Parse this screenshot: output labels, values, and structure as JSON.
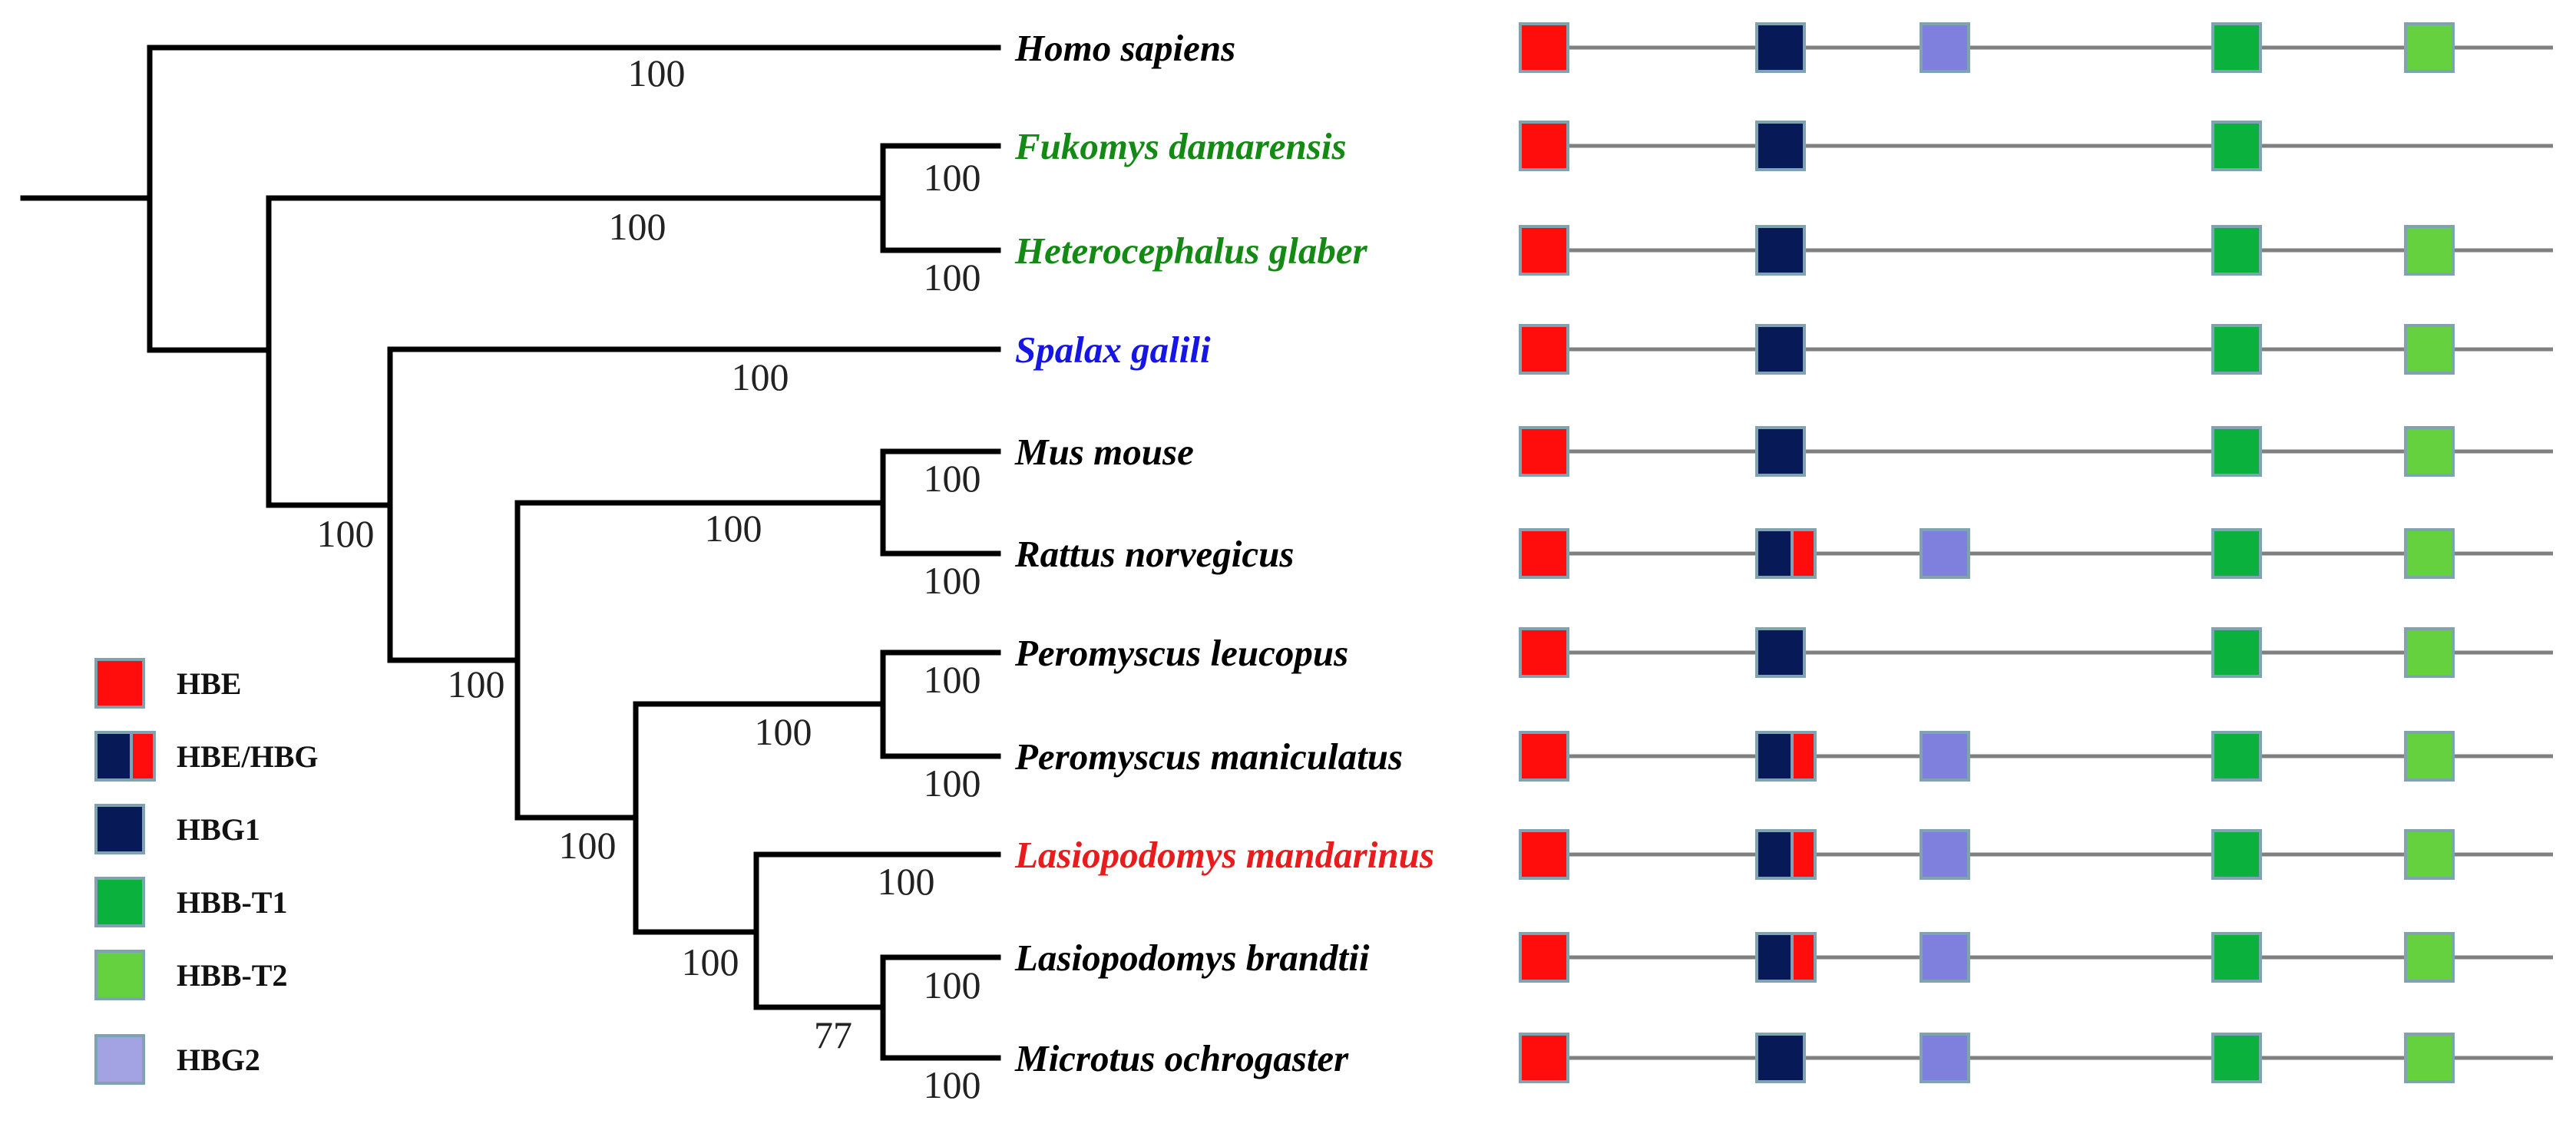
{
  "taxa": [
    {
      "name": "Homo sapiens",
      "color": "#000000",
      "genes": [
        "HBE",
        "HBG1",
        "HBG2",
        "HBB-T1",
        "HBB-T2"
      ]
    },
    {
      "name": "Fukomys damarensis",
      "color": "#138a13",
      "genes": [
        "HBE",
        "HBG1",
        "HBB-T1"
      ]
    },
    {
      "name": "Heterocephalus glaber",
      "color": "#138a13",
      "genes": [
        "HBE",
        "HBG1",
        "HBB-T1",
        "HBB-T2"
      ]
    },
    {
      "name": "Spalax galili",
      "color": "#1515e6",
      "genes": [
        "HBE",
        "HBG1",
        "HBB-T1",
        "HBB-T2"
      ]
    },
    {
      "name": "Mus mouse",
      "color": "#000000",
      "genes": [
        "HBE",
        "HBG1",
        "HBB-T1",
        "HBB-T2"
      ]
    },
    {
      "name": "Rattus norvegicus",
      "color": "#000000",
      "genes": [
        "HBE",
        "HBE/HBG",
        "HBG2",
        "HBB-T1",
        "HBB-T2"
      ]
    },
    {
      "name": "Peromyscus leucopus",
      "color": "#000000",
      "genes": [
        "HBE",
        "HBG1",
        "HBB-T1",
        "HBB-T2"
      ]
    },
    {
      "name": "Peromyscus maniculatus",
      "color": "#000000",
      "genes": [
        "HBE",
        "HBE/HBG",
        "HBG2",
        "HBB-T1",
        "HBB-T2"
      ]
    },
    {
      "name": "Lasiopodomys mandarinus",
      "color": "#e81c1c",
      "genes": [
        "HBE",
        "HBE/HBG",
        "HBG2",
        "HBB-T1",
        "HBB-T2"
      ]
    },
    {
      "name": "Lasiopodomys brandtii",
      "color": "#000000",
      "genes": [
        "HBE",
        "HBE/HBG",
        "HBG2",
        "HBB-T1",
        "HBB-T2"
      ]
    },
    {
      "name": "Microtus ochrogaster",
      "color": "#000000",
      "genes": [
        "HBE",
        "HBG1",
        "HBG2",
        "HBB-T1",
        "HBB-T2"
      ]
    }
  ],
  "support_values": [
    {
      "node": "homo-branch",
      "value": "100"
    },
    {
      "node": "fukomys-branch",
      "value": "100"
    },
    {
      "node": "heterocephalus-branch",
      "value": "100"
    },
    {
      "node": "blesmol-clade",
      "value": "100"
    },
    {
      "node": "spalax-branch",
      "value": "100"
    },
    {
      "node": "rodent-clade",
      "value": "100"
    },
    {
      "node": "mus-branch",
      "value": "100"
    },
    {
      "node": "rattus-branch",
      "value": "100"
    },
    {
      "node": "murid-clade",
      "value": "100"
    },
    {
      "node": "muroid-clade",
      "value": "100"
    },
    {
      "node": "peromyscus-leucopus-branch",
      "value": "100"
    },
    {
      "node": "peromyscus-maniculatus-branch",
      "value": "100"
    },
    {
      "node": "peromyscus-clade",
      "value": "100"
    },
    {
      "node": "cricetid-clade",
      "value": "100"
    },
    {
      "node": "lasiopodomys-mandarinus-branch",
      "value": "100"
    },
    {
      "node": "arvicoline-clade",
      "value": "100"
    },
    {
      "node": "lasiopodomys-brandtii-branch",
      "value": "100"
    },
    {
      "node": "brandtii-microtus-clade",
      "value": "77"
    },
    {
      "node": "microtus-branch",
      "value": "100"
    }
  ],
  "legend": [
    {
      "label": "HBE",
      "gene": "HBE"
    },
    {
      "label": "HBE/HBG",
      "gene": "HBE/HBG"
    },
    {
      "label": "HBG1",
      "gene": "HBG1"
    },
    {
      "label": "HBB-T1",
      "gene": "HBB-T1"
    },
    {
      "label": "HBB-T2",
      "gene": "HBB-T2"
    },
    {
      "label": "HBG2",
      "gene": "HBG2"
    }
  ],
  "gene_colors": {
    "HBE": "#ff0d0d",
    "HBG1": "#071a57",
    "HBG2": "#7f7fdd",
    "HBG2_legend": "#a3a3e3",
    "HBB-T1": "#0bb13d",
    "HBB-T2": "#66d13f"
  }
}
